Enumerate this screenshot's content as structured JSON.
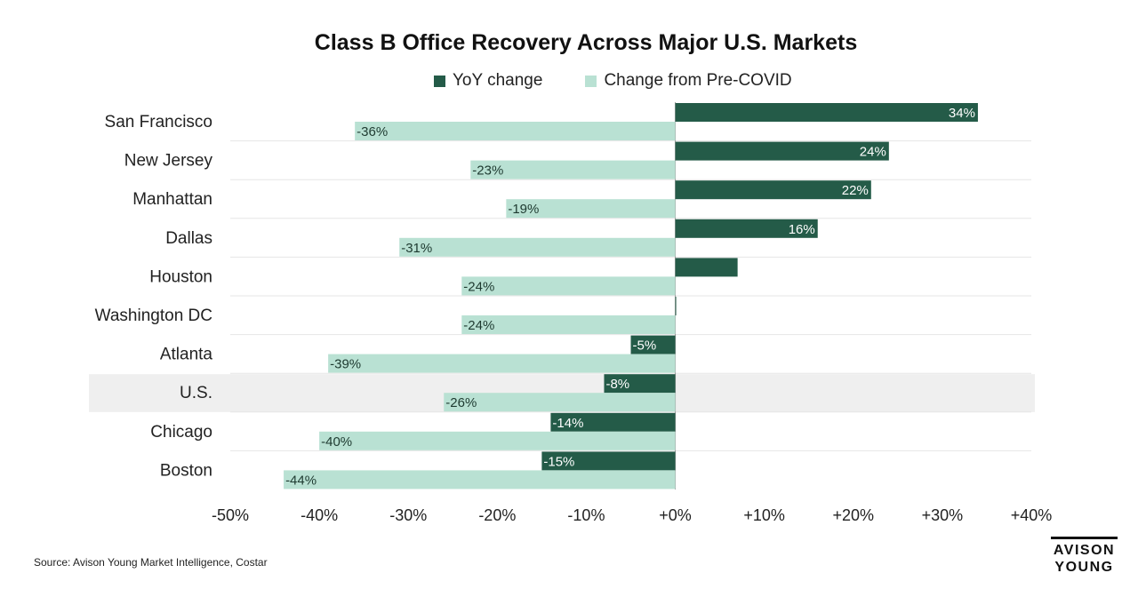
{
  "chart_data": {
    "type": "bar",
    "orientation": "horizontal",
    "title": "Class B Office Recovery Across Major U.S. Markets",
    "categories": [
      "San Francisco",
      "New Jersey",
      "Manhattan",
      "Dallas",
      "Houston",
      "Washington DC",
      "Atlanta",
      "U.S.",
      "Chicago",
      "Boston"
    ],
    "highlight_category": "U.S.",
    "series": [
      {
        "name": "YoY change",
        "color": "#245b48",
        "values": [
          34,
          24,
          22,
          16,
          7,
          0,
          -5,
          -8,
          -14,
          -15
        ],
        "labels": [
          "34%",
          "24%",
          "22%",
          "16%",
          "",
          "",
          "-5%",
          "-8%",
          "-14%",
          "-15%"
        ]
      },
      {
        "name": "Change from Pre-COVID",
        "color": "#b9e1d3",
        "values": [
          -36,
          -23,
          -19,
          -31,
          -24,
          -24,
          -39,
          -26,
          -40,
          -44
        ],
        "labels": [
          "-36%",
          "-23%",
          "-19%",
          "-31%",
          "-24%",
          "-24%",
          "-39%",
          "-26%",
          "-40%",
          "-44%"
        ]
      }
    ],
    "xlim": [
      -50,
      40
    ],
    "xticks": [
      -50,
      -40,
      -30,
      -20,
      -10,
      0,
      10,
      20,
      30,
      40
    ],
    "xtick_labels": [
      "-50%",
      "-40%",
      "-30%",
      "-20%",
      "-10%",
      "+0%",
      "+10%",
      "+20%",
      "+30%",
      "+40%"
    ],
    "xlabel": "",
    "ylabel": "",
    "legend_position": "top-center",
    "grid": true
  },
  "footer": {
    "source": "Source: Avison Young Market Intelligence, Costar",
    "logo_line1": "AVISON",
    "logo_line2": "YOUNG"
  }
}
